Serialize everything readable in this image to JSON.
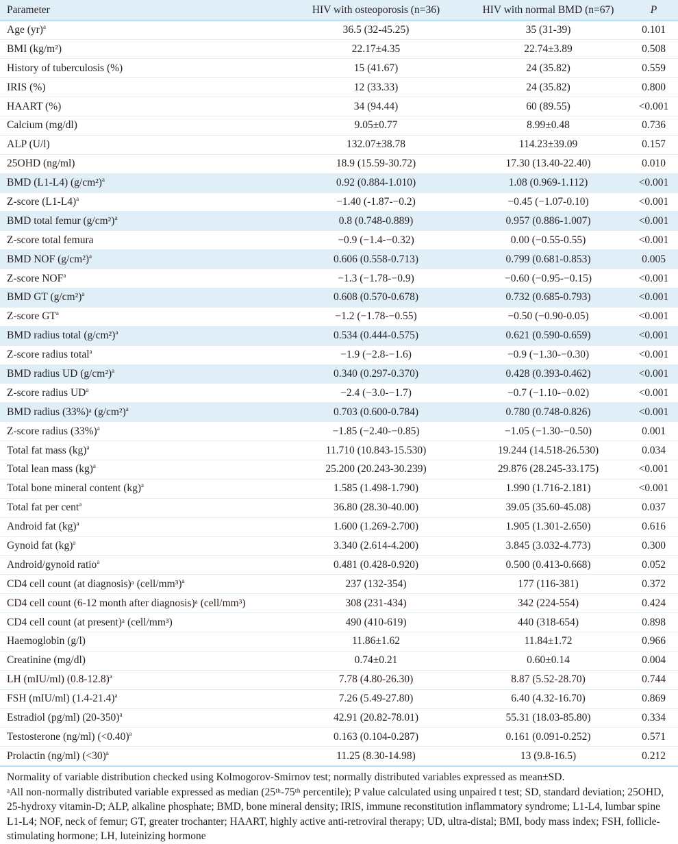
{
  "headers": {
    "parameter": "Parameter",
    "osteo": "HIV with osteoporosis (n=36)",
    "normal": "HIV with normal BMD (n=67)",
    "p": "P"
  },
  "rows": [
    {
      "param": "Age (yr)",
      "sup": "a",
      "osteo": "36.5 (32-45.25)",
      "normal": "35 (31-39)",
      "p": "0.101",
      "hl": false
    },
    {
      "param": "BMI (kg/m²)",
      "sup": "",
      "osteo": "22.17±4.35",
      "normal": "22.74±3.89",
      "p": "0.508",
      "hl": false
    },
    {
      "param": "History of tuberculosis (%)",
      "sup": "",
      "osteo": "15 (41.67)",
      "normal": "24 (35.82)",
      "p": "0.559",
      "hl": false
    },
    {
      "param": "IRIS (%)",
      "sup": "",
      "osteo": "12 (33.33)",
      "normal": "24 (35.82)",
      "p": "0.800",
      "hl": false
    },
    {
      "param": "HAART (%)",
      "sup": "",
      "osteo": "34 (94.44)",
      "normal": "60 (89.55)",
      "p": "<0.001",
      "hl": false
    },
    {
      "param": "Calcium (mg/dl)",
      "sup": "",
      "osteo": "9.05±0.77",
      "normal": "8.99±0.48",
      "p": "0.736",
      "hl": false
    },
    {
      "param": "ALP (U/l)",
      "sup": "",
      "osteo": "132.07±38.78",
      "normal": "114.23±39.09",
      "p": "0.157",
      "hl": false
    },
    {
      "param": "25OHD (ng/ml)",
      "sup": "",
      "osteo": "18.9 (15.59-30.72)",
      "normal": "17.30 (13.40-22.40)",
      "p": "0.010",
      "hl": false
    },
    {
      "param": "BMD (L1-L4) (g/cm²)",
      "sup": "a",
      "osteo": "0.92 (0.884-1.010)",
      "normal": "1.08 (0.969-1.112)",
      "p": "<0.001",
      "hl": true
    },
    {
      "param": "Z-score (L1-L4)",
      "sup": "a",
      "osteo": "−1.40 (-1.87-−0.2)",
      "normal": "−0.45 (−1.07-0.10)",
      "p": "<0.001",
      "hl": false
    },
    {
      "param": "BMD total femur (g/cm²)",
      "sup": "a",
      "osteo": "0.8 (0.748-0.889)",
      "normal": "0.957 (0.886-1.007)",
      "p": "<0.001",
      "hl": true
    },
    {
      "param": "Z-score total femura",
      "sup": "",
      "osteo": "−0.9 (−1.4-−0.32)",
      "normal": "0.00 (−0.55-0.55)",
      "p": "<0.001",
      "hl": false
    },
    {
      "param": "BMD NOF (g/cm²)",
      "sup": "a",
      "osteo": "0.606 (0.558-0.713)",
      "normal": "0.799 (0.681-0.853)",
      "p": "0.005",
      "hl": true
    },
    {
      "param": "Z-score NOF",
      "sup": "a",
      "osteo": "−1.3 (−1.78-−0.9)",
      "normal": "−0.60 (−0.95-−0.15)",
      "p": "<0.001",
      "hl": false
    },
    {
      "param": "BMD GT (g/cm²)",
      "sup": "a",
      "osteo": "0.608 (0.570-0.678)",
      "normal": "0.732 (0.685-0.793)",
      "p": "<0.001",
      "hl": true
    },
    {
      "param": "Z-score GT",
      "sup": "a",
      "osteo": "−1.2 (−1.78-−0.55)",
      "normal": "−0.50 (−0.90-0.05)",
      "p": "<0.001",
      "hl": false
    },
    {
      "param": "BMD radius total (g/cm²)",
      "sup": "a",
      "osteo": "0.534 (0.444-0.575)",
      "normal": "0.621 (0.590-0.659)",
      "p": "<0.001",
      "hl": true
    },
    {
      "param": "Z-score radius total",
      "sup": "a",
      "osteo": "−1.9 (−2.8-−1.6)",
      "normal": "−0.9 (−1.30-−0.30)",
      "p": "<0.001",
      "hl": false
    },
    {
      "param": "BMD radius UD (g/cm²)",
      "sup": "a",
      "osteo": "0.340 (0.297-0.370)",
      "normal": "0.428 (0.393-0.462)",
      "p": "<0.001",
      "hl": true
    },
    {
      "param": "Z-score radius UD",
      "sup": "a",
      "osteo": "−2.4 (−3.0-−1.7)",
      "normal": "−0.7 (−1.10-−0.02)",
      "p": "<0.001",
      "hl": false
    },
    {
      "param": "BMD radius (33%)ᵃ (g/cm²)",
      "sup": "a",
      "osteo": "0.703 (0.600-0.784)",
      "normal": "0.780 (0.748-0.826)",
      "p": "<0.001",
      "hl": true
    },
    {
      "param": "Z-score radius (33%)",
      "sup": "a",
      "osteo": "−1.85 (−2.40-−0.85)",
      "normal": "−1.05 (−1.30-−0.50)",
      "p": "0.001",
      "hl": false
    },
    {
      "param": "Total fat mass (kg)",
      "sup": "a",
      "osteo": "11.710 (10.843-15.530)",
      "normal": "19.244 (14.518-26.530)",
      "p": "0.034",
      "hl": false
    },
    {
      "param": "Total lean mass (kg)",
      "sup": "a",
      "osteo": "25.200 (20.243-30.239)",
      "normal": "29.876 (28.245-33.175)",
      "p": "<0.001",
      "hl": false
    },
    {
      "param": "Total bone mineral content (kg)",
      "sup": "a",
      "osteo": "1.585 (1.498-1.790)",
      "normal": "1.990 (1.716-2.181)",
      "p": "<0.001",
      "hl": false
    },
    {
      "param": "Total fat per cent",
      "sup": "a",
      "osteo": "36.80 (28.30-40.00)",
      "normal": "39.05 (35.60-45.08)",
      "p": "0.037",
      "hl": false
    },
    {
      "param": "Android fat (kg)",
      "sup": "a",
      "osteo": "1.600 (1.269-2.700)",
      "normal": "1.905 (1.301-2.650)",
      "p": "0.616",
      "hl": false
    },
    {
      "param": "Gynoid fat (kg)",
      "sup": "a",
      "osteo": "3.340 (2.614-4.200)",
      "normal": "3.845 (3.032-4.773)",
      "p": "0.300",
      "hl": false
    },
    {
      "param": "Android/gynoid ratio",
      "sup": "a",
      "osteo": "0.481 (0.428-0.920)",
      "normal": "0.500 (0.413-0.668)",
      "p": "0.052",
      "hl": false
    },
    {
      "param": "CD4 cell count (at diagnosis)ᵃ (cell/mm³)",
      "sup": "a",
      "osteo": "237 (132-354)",
      "normal": "177 (116-381)",
      "p": "0.372",
      "hl": false
    },
    {
      "param": "CD4 cell count (6-12 month after diagnosis)ᵃ (cell/mm³)",
      "sup": "",
      "osteo": "308 (231-434)",
      "normal": "342 (224-554)",
      "p": "0.424",
      "hl": false
    },
    {
      "param": "CD4 cell count (at present)ᵃ (cell/mm³)",
      "sup": "",
      "osteo": "490 (410-619)",
      "normal": "440 (318-654)",
      "p": "0.898",
      "hl": false
    },
    {
      "param": "Haemoglobin (g/l)",
      "sup": "",
      "osteo": "11.86±1.62",
      "normal": "11.84±1.72",
      "p": "0.966",
      "hl": false
    },
    {
      "param": "Creatinine (mg/dl)",
      "sup": "",
      "osteo": "0.74±0.21",
      "normal": "0.60±0.14",
      "p": "0.004",
      "hl": false
    },
    {
      "param": "LH (mIU/ml) (0.8-12.8)",
      "sup": "a",
      "osteo": "7.78 (4.80-26.30)",
      "normal": "8.87 (5.52-28.70)",
      "p": "0.744",
      "hl": false
    },
    {
      "param": "FSH (mIU/ml) (1.4-21.4)",
      "sup": "a",
      "osteo": "7.26 (5.49-27.80)",
      "normal": "6.40 (4.32-16.70)",
      "p": "0.869",
      "hl": false
    },
    {
      "param": "Estradiol (pg/ml) (20-350)",
      "sup": "a",
      "osteo": "42.91 (20.82-78.01)",
      "normal": "55.31 (18.03-85.80)",
      "p": "0.334",
      "hl": false
    },
    {
      "param": "Testosterone (ng/ml) (<0.40)",
      "sup": "a",
      "osteo": "0.163 (0.104-0.287)",
      "normal": "0.161 (0.091-0.252)",
      "p": "0.571",
      "hl": false
    },
    {
      "param": "Prolactin (ng/ml) (<30)",
      "sup": "a",
      "osteo": "11.25 (8.30-14.98)",
      "normal": "13 (9.8-16.5)",
      "p": "0.212",
      "hl": false
    }
  ],
  "footnote": {
    "line1": "Normality of variable distribution checked using Kolmogorov-Smirnov test; normally distributed variables expressed as mean±SD.",
    "line2": "ᵃAll non-normally distributed variable expressed as median (25ᵗʰ-75ᵗʰ percentile); P value calculated using unpaired t test; SD, standard deviation; 25OHD, 25-hydroxy vitamin-D; ALP, alkaline phosphate; BMD, bone mineral density; IRIS, immune reconstitution inflammatory syndrome; L1-L4, lumbar spine L1-L4; NOF, neck of femur; GT, greater trochanter; HAART, highly active anti-retroviral therapy; UD, ultra-distal; BMI, body mass index; FSH, follicle-stimulating hormone; LH, luteinizing hormone"
  }
}
